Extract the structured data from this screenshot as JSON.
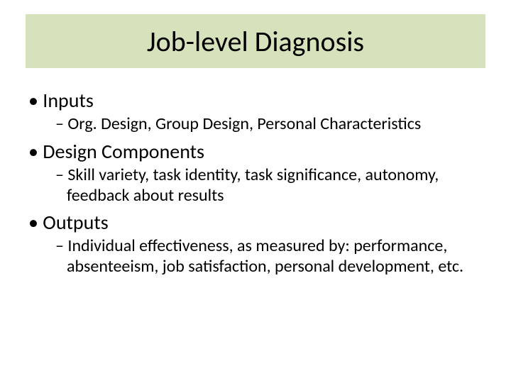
{
  "slide": {
    "title": "Job-level Diagnosis",
    "title_bg_color": "#d6e2bc",
    "title_font_size": 40,
    "body_l1_font_size": 28,
    "body_l2_font_size": 24,
    "text_color": "#000000",
    "background_color": "#ffffff",
    "bullets": [
      {
        "level": 1,
        "text": "Inputs",
        "children": [
          {
            "level": 2,
            "text": "Org. Design, Group Design, Personal Characteristics"
          }
        ]
      },
      {
        "level": 1,
        "text": "Design Components",
        "children": [
          {
            "level": 2,
            "text": "Skill variety, task identity, task significance, autonomy, feedback about results"
          }
        ]
      },
      {
        "level": 1,
        "text": "Outputs",
        "children": [
          {
            "level": 2,
            "text": "Individual effectiveness, as measured by: performance, absenteeism, job satisfaction, personal development, etc."
          }
        ]
      }
    ]
  }
}
